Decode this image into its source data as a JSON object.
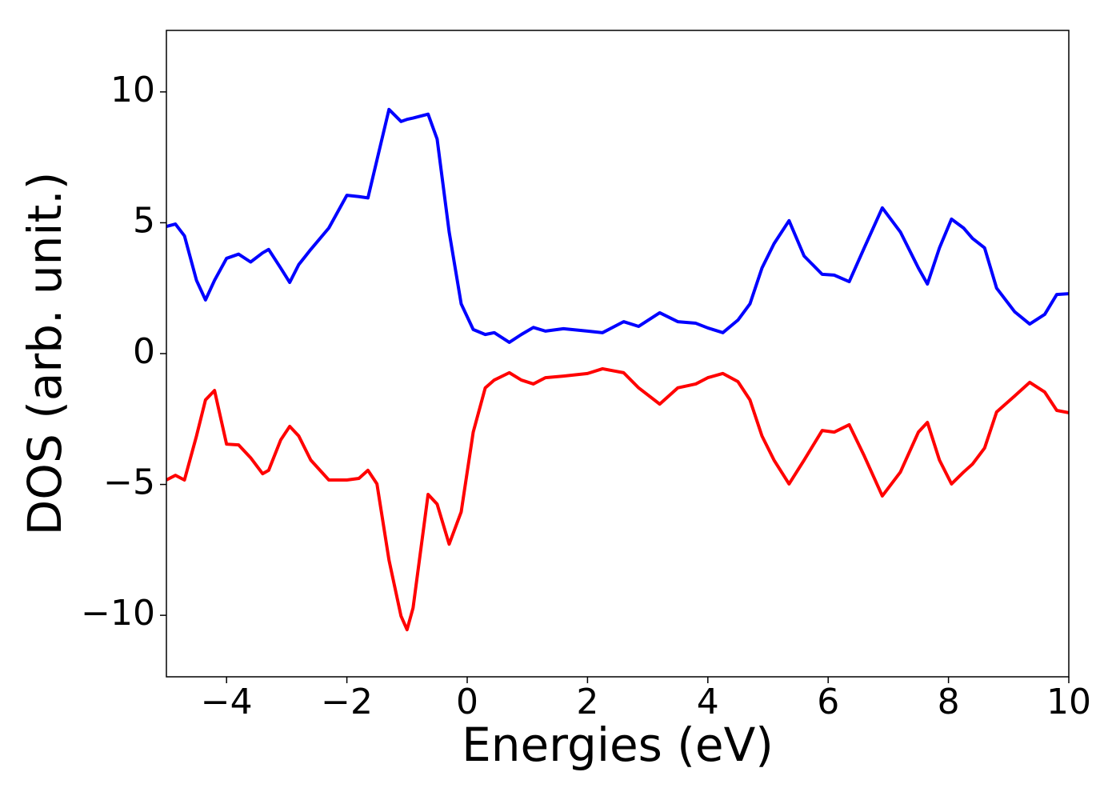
{
  "chart_data": {
    "type": "line",
    "xlabel": "Energies (eV)",
    "ylabel": "DOS (arb. unit.)",
    "x": [
      -5,
      -4.85,
      -4.7,
      -4.5,
      -4.35,
      -4.2,
      -4.0,
      -3.8,
      -3.6,
      -3.4,
      -3.3,
      -3.1,
      -2.95,
      -2.8,
      -2.6,
      -2.3,
      -2.0,
      -1.8,
      -1.65,
      -1.5,
      -1.3,
      -1.1,
      -1.0,
      -0.9,
      -0.65,
      -0.5,
      -0.3,
      -0.1,
      0.1,
      0.3,
      0.45,
      0.7,
      0.9,
      1.1,
      1.3,
      1.6,
      2.0,
      2.25,
      2.6,
      2.85,
      3.2,
      3.5,
      3.8,
      4.0,
      4.25,
      4.5,
      4.7,
      4.9,
      5.1,
      5.35,
      5.6,
      5.9,
      6.1,
      6.35,
      6.6,
      6.9,
      7.2,
      7.5,
      7.65,
      7.85,
      8.05,
      8.25,
      8.4,
      8.6,
      8.8,
      9.1,
      9.35,
      9.6,
      9.8,
      10
    ],
    "series": [
      {
        "color": "#0000ff",
        "values": [
          4.86,
          4.95,
          4.5,
          2.8,
          2.05,
          2.8,
          3.64,
          3.8,
          3.5,
          3.85,
          3.98,
          3.27,
          2.72,
          3.4,
          3.98,
          4.8,
          6.05,
          6.0,
          5.95,
          7.4,
          9.33,
          8.87,
          8.95,
          9.0,
          9.15,
          8.2,
          4.65,
          1.9,
          0.92,
          0.73,
          0.8,
          0.43,
          0.73,
          1.0,
          0.86,
          0.95,
          0.86,
          0.8,
          1.22,
          1.04,
          1.56,
          1.22,
          1.16,
          0.98,
          0.8,
          1.28,
          1.9,
          3.27,
          4.2,
          5.08,
          3.73,
          3.03,
          3.0,
          2.75,
          4.04,
          5.57,
          4.65,
          3.27,
          2.66,
          4.04,
          5.14,
          4.8,
          4.4,
          4.04,
          2.5,
          1.6,
          1.13,
          1.5,
          2.26,
          2.29
        ]
      },
      {
        "color": "#ff0000",
        "values": [
          -4.83,
          -4.65,
          -4.83,
          -3.15,
          -1.77,
          -1.41,
          -3.46,
          -3.49,
          -3.98,
          -4.59,
          -4.46,
          -3.3,
          -2.78,
          -3.15,
          -4.07,
          -4.83,
          -4.83,
          -4.77,
          -4.46,
          -4.98,
          -7.89,
          -10.03,
          -10.55,
          -9.72,
          -5.38,
          -5.75,
          -7.28,
          -6.05,
          -3.0,
          -1.31,
          -1.01,
          -0.73,
          -1.01,
          -1.16,
          -0.92,
          -0.86,
          -0.76,
          -0.58,
          -0.73,
          -1.31,
          -1.93,
          -1.31,
          -1.16,
          -0.92,
          -0.76,
          -1.07,
          -1.77,
          -3.15,
          -4.07,
          -4.98,
          -4.07,
          -2.94,
          -3.0,
          -2.72,
          -3.91,
          -5.44,
          -4.53,
          -3.0,
          -2.63,
          -4.07,
          -4.98,
          -4.53,
          -4.22,
          -3.61,
          -2.23,
          -1.62,
          -1.1,
          -1.47,
          -2.17,
          -2.26
        ]
      }
    ],
    "xlim": [
      -5,
      10
    ],
    "xticks": [
      {
        "value": -4,
        "label": "−4"
      },
      {
        "value": -2,
        "label": "−2"
      },
      0,
      2,
      4,
      6,
      8,
      10
    ],
    "ylim": [
      -12.35,
      12.35
    ],
    "yticks": [
      {
        "value": -10,
        "label": "−10"
      },
      {
        "value": -5,
        "label": "−5"
      },
      0,
      5,
      10
    ],
    "grid": false
  }
}
